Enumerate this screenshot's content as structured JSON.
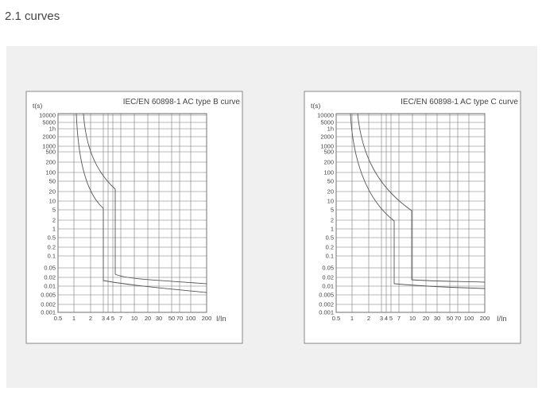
{
  "heading": "2.1 curves",
  "panels": [
    {
      "title": "IEC/EN 60898-1 AC type B curve",
      "y_label": "t(s)",
      "x_label": "I/In",
      "y_ticks": [
        "10000",
        "5000",
        "1h",
        "2000",
        "1000",
        "500",
        "200",
        "100",
        "50",
        "20",
        "10",
        "5",
        "2",
        "1",
        "0.5",
        "0.2",
        "0.1",
        "0.05",
        "0.02",
        "0.01",
        "0.005",
        "0.002",
        "0.001"
      ],
      "x_ticks": [
        "0.5",
        "1",
        "2",
        "3",
        "4",
        "5",
        "7",
        "10",
        "20",
        "30",
        "50",
        "70",
        "100",
        "200"
      ]
    },
    {
      "title": "IEC/EN 60898-1 AC type C curve",
      "y_label": "t(s)",
      "x_label": "I/In",
      "y_ticks": [
        "10000",
        "5000",
        "1h",
        "2000",
        "1000",
        "500",
        "200",
        "100",
        "50",
        "20",
        "10",
        "5",
        "2",
        "1",
        "0.5",
        "0.2",
        "0.1",
        "0.05",
        "0.02",
        "0.01",
        "0.005",
        "0.002",
        "0.001"
      ],
      "x_ticks": [
        "0.5",
        "1",
        "2",
        "3",
        "4",
        "5",
        "7",
        "10",
        "20",
        "30",
        "50",
        "70",
        "100",
        "200"
      ]
    }
  ]
}
